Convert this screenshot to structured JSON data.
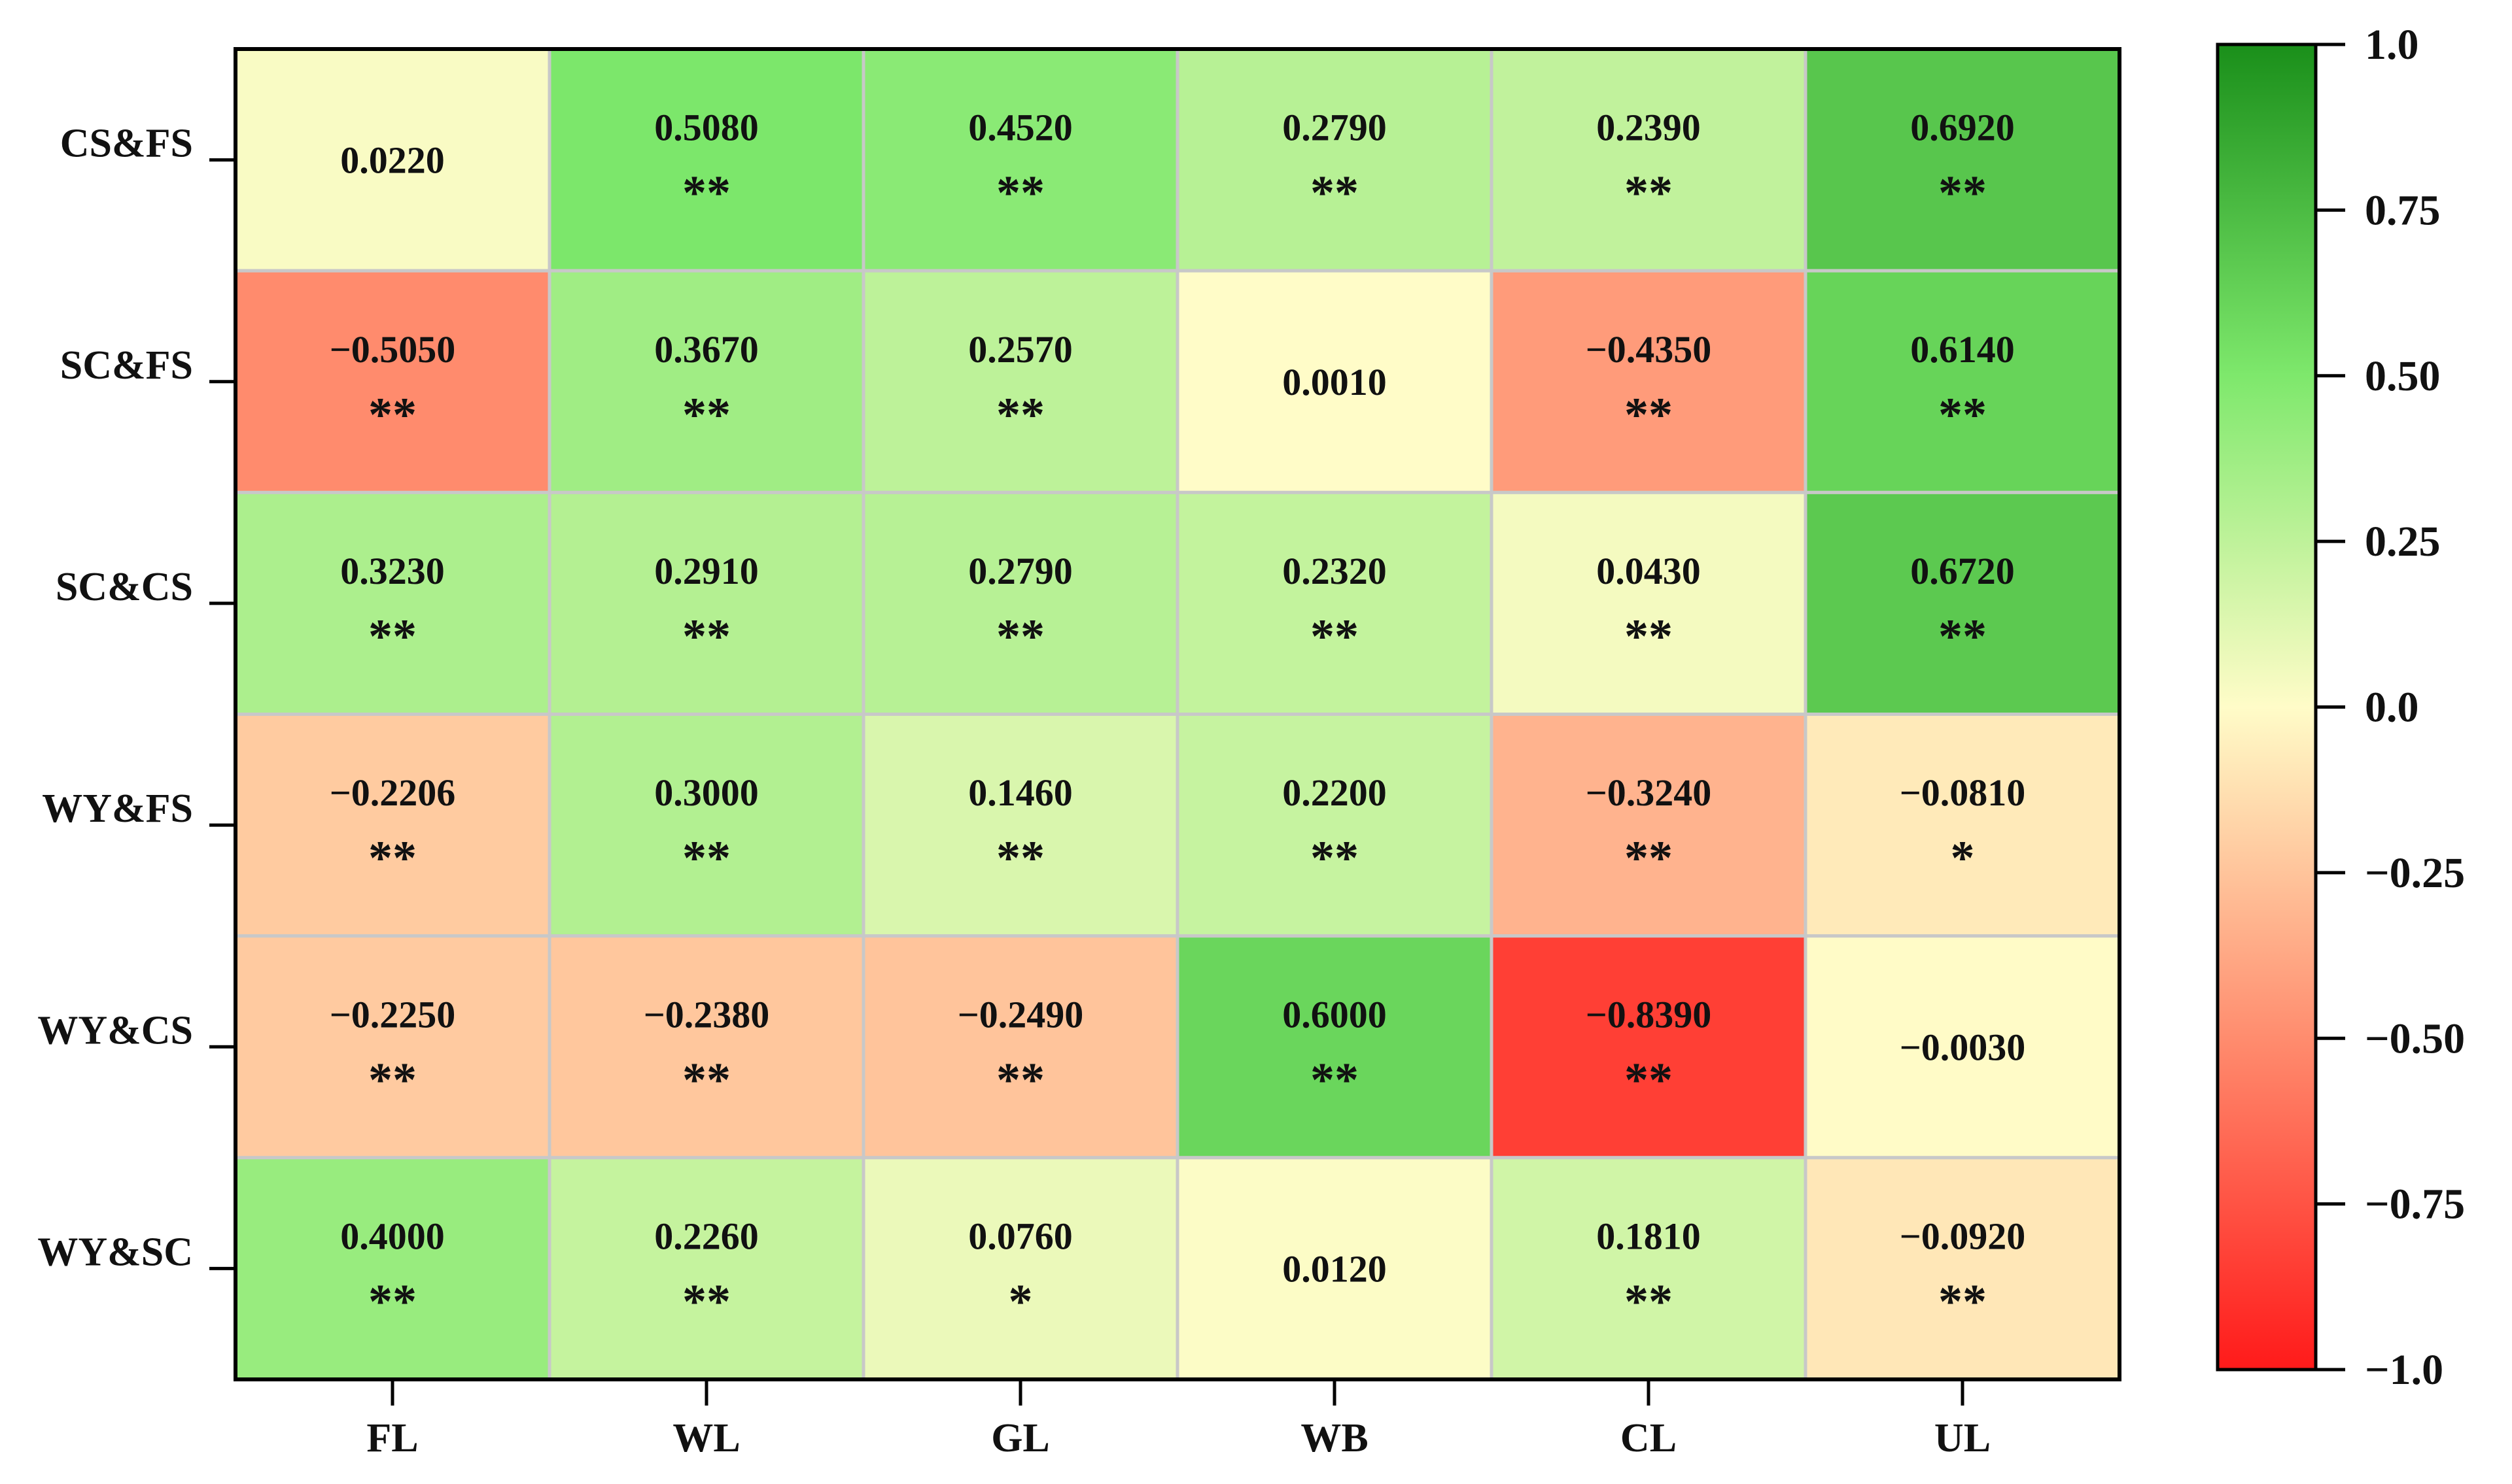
{
  "chart_data": {
    "type": "heatmap",
    "title": "",
    "xlabel": "",
    "ylabel": "",
    "columns": [
      "FL",
      "WL",
      "GL",
      "WB",
      "CL",
      "UL"
    ],
    "rows": [
      "CS&FS",
      "SC&FS",
      "SC&CS",
      "WY&FS",
      "WY&CS",
      "WY&SC"
    ],
    "values": [
      [
        0.022,
        0.508,
        0.452,
        0.279,
        0.239,
        0.692
      ],
      [
        -0.505,
        0.367,
        0.257,
        0.001,
        -0.435,
        0.614
      ],
      [
        0.323,
        0.291,
        0.279,
        0.232,
        0.043,
        0.672
      ],
      [
        -0.2206,
        0.3,
        0.146,
        0.22,
        -0.324,
        -0.081
      ],
      [
        -0.225,
        -0.238,
        -0.249,
        0.6,
        -0.839,
        -0.003
      ],
      [
        0.4,
        0.226,
        0.076,
        0.012,
        0.181,
        -0.092
      ]
    ],
    "value_labels": [
      [
        "0.0220",
        "0.5080",
        "0.4520",
        "0.2790",
        "0.2390",
        "0.6920"
      ],
      [
        "−0.5050",
        "0.3670",
        "0.2570",
        "0.0010",
        "−0.4350",
        "0.6140"
      ],
      [
        "0.3230",
        "0.2910",
        "0.2790",
        "0.2320",
        "0.0430",
        "0.6720"
      ],
      [
        "−0.2206",
        "0.3000",
        "0.1460",
        "0.2200",
        "−0.3240",
        "−0.0810"
      ],
      [
        "−0.2250",
        "−0.2380",
        "−0.2490",
        "0.6000",
        "−0.8390",
        "−0.0030"
      ],
      [
        "0.4000",
        "0.2260",
        "0.0760",
        "0.0120",
        "0.1810",
        "−0.0920"
      ]
    ],
    "significance": [
      [
        "",
        "**",
        "**",
        "**",
        "**",
        "**"
      ],
      [
        "**",
        "**",
        "**",
        "",
        "**",
        "**"
      ],
      [
        "**",
        "**",
        "**",
        "**",
        "**",
        "**"
      ],
      [
        "**",
        "**",
        "**",
        "**",
        "**",
        "*"
      ],
      [
        "**",
        "**",
        "**",
        "**",
        "**",
        ""
      ],
      [
        "**",
        "**",
        "*",
        "",
        "**",
        "**"
      ]
    ],
    "color_scale": {
      "range": [
        -1.0,
        1.0
      ],
      "colors": {
        "negative": "#ff1a1a",
        "zero": "#fffcc8",
        "positive": "#1a8f1a"
      },
      "ticks": [
        1.0,
        0.75,
        0.5,
        0.25,
        0.0,
        -0.25,
        -0.5,
        -0.75,
        -1.0
      ],
      "tick_labels": [
        "1.0",
        "0.75",
        "0.50",
        "0.25",
        "0.0",
        "−0.25",
        "−0.50",
        "−0.75",
        "−1.0"
      ]
    },
    "grid": true,
    "legend": "colorbar-right"
  }
}
